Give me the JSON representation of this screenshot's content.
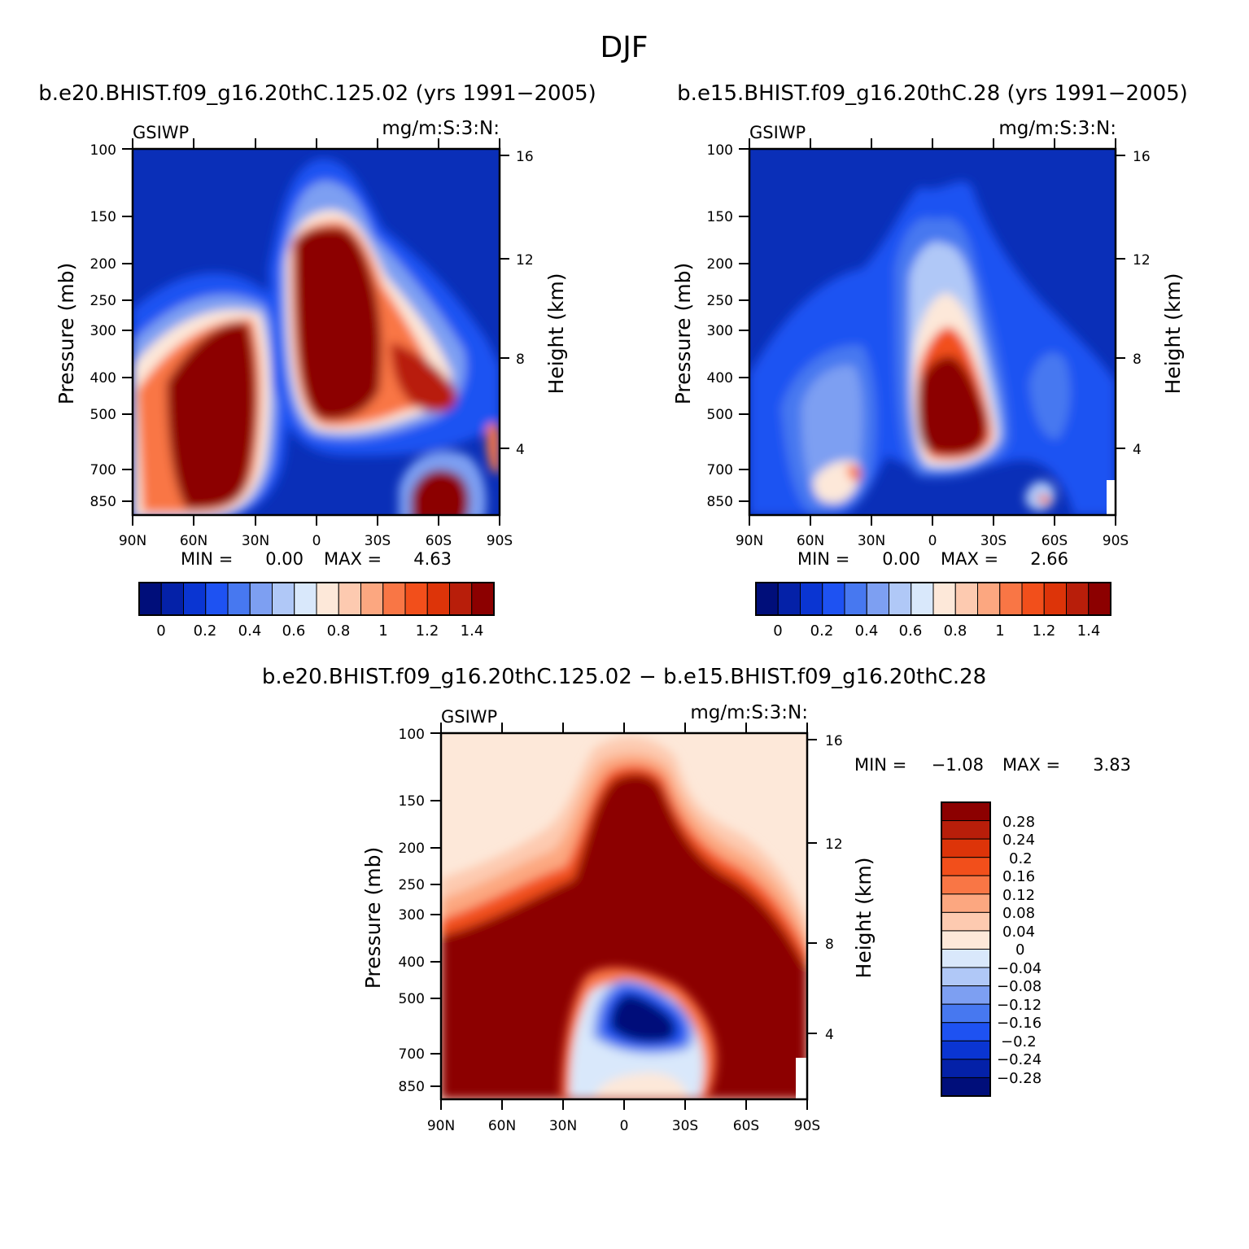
{
  "figure_title": "DJF",
  "chart_data": [
    {
      "type": "heatmap",
      "id": "top-left",
      "title": "b.e20.BHIST.f09_g16.20thC.125.02 (yrs 1991−2005)",
      "variable": "GSIWP",
      "units": "mg/m:S:3:N:",
      "xlabel": "",
      "ylabel": "Pressure (mb)",
      "ylabel_right": "Height (km)",
      "x_ticks": [
        "90N",
        "60N",
        "30N",
        "0",
        "30S",
        "60S",
        "90S"
      ],
      "y_ticks": [
        "100",
        "150",
        "200",
        "250",
        "300",
        "400",
        "500",
        "700",
        "850"
      ],
      "y_ticks_right": [
        "16",
        "12",
        "8",
        "4"
      ],
      "min_label": "MIN =",
      "min_value": "0.00",
      "max_label": "MAX =",
      "max_value": "4.63",
      "colorbar_ticks": [
        "0",
        "0.2",
        "0.4",
        "0.6",
        "0.8",
        "1",
        "1.2",
        "1.4"
      ],
      "levels": [
        0,
        0.1,
        0.2,
        0.3,
        0.4,
        0.5,
        0.6,
        0.7,
        0.8,
        0.9,
        1.0,
        1.1,
        1.2,
        1.3,
        1.4
      ]
    },
    {
      "type": "heatmap",
      "id": "top-right",
      "title": "b.e15.BHIST.f09_g16.20thC.28 (yrs 1991−2005)",
      "variable": "GSIWP",
      "units": "mg/m:S:3:N:",
      "xlabel": "",
      "ylabel": "Pressure (mb)",
      "ylabel_right": "Height (km)",
      "x_ticks": [
        "90N",
        "60N",
        "30N",
        "0",
        "30S",
        "60S",
        "90S"
      ],
      "y_ticks": [
        "100",
        "150",
        "200",
        "250",
        "300",
        "400",
        "500",
        "700",
        "850"
      ],
      "y_ticks_right": [
        "16",
        "12",
        "8",
        "4"
      ],
      "min_label": "MIN =",
      "min_value": "0.00",
      "max_label": "MAX =",
      "max_value": "2.66",
      "colorbar_ticks": [
        "0",
        "0.2",
        "0.4",
        "0.6",
        "0.8",
        "1",
        "1.2",
        "1.4"
      ],
      "levels": [
        0,
        0.1,
        0.2,
        0.3,
        0.4,
        0.5,
        0.6,
        0.7,
        0.8,
        0.9,
        1.0,
        1.1,
        1.2,
        1.3,
        1.4
      ]
    },
    {
      "type": "heatmap",
      "id": "bottom",
      "title": "b.e20.BHIST.f09_g16.20thC.125.02 − b.e15.BHIST.f09_g16.20thC.28",
      "variable": "GSIWP",
      "units": "mg/m:S:3:N:",
      "xlabel": "",
      "ylabel": "Pressure (mb)",
      "ylabel_right": "Height (km)",
      "x_ticks": [
        "90N",
        "60N",
        "30N",
        "0",
        "30S",
        "60S",
        "90S"
      ],
      "y_ticks": [
        "100",
        "150",
        "200",
        "250",
        "300",
        "400",
        "500",
        "700",
        "850"
      ],
      "y_ticks_right": [
        "16",
        "12",
        "8",
        "4"
      ],
      "min_label": "MIN =",
      "min_value": "−1.08",
      "max_label": "MAX =",
      "max_value": "3.83",
      "colorbar_ticks": [
        "0.28",
        "0.24",
        "0.2",
        "0.16",
        "0.12",
        "0.08",
        "0.04",
        "0",
        "−0.04",
        "−0.08",
        "−0.12",
        "−0.16",
        "−0.2",
        "−0.24",
        "−0.28"
      ]
    }
  ],
  "palette": [
    "#000e7a",
    "#0421a8",
    "#0a35d2",
    "#1e52f2",
    "#4778f0",
    "#7d9ff2",
    "#b0c8f7",
    "#d9e8fb",
    "#fde8d9",
    "#fdcab0",
    "#fca780",
    "#f97645",
    "#f24f1b",
    "#dd3409",
    "#b81e0a",
    "#8c0000"
  ]
}
